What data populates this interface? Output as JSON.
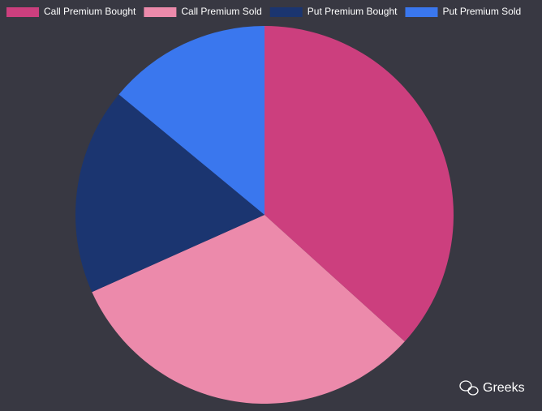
{
  "chart_data": {
    "type": "pie",
    "categories": [
      "Call Premium Bought",
      "Call Premium Sold",
      "Put Premium Bought",
      "Put Premium Sold"
    ],
    "values": [
      36.7,
      31.6,
      17.7,
      14.0
    ],
    "colors": [
      "#cc3f7e",
      "#ec8aab",
      "#1b3570",
      "#3a77ee"
    ],
    "legend": "top"
  },
  "watermark": "Greeks"
}
